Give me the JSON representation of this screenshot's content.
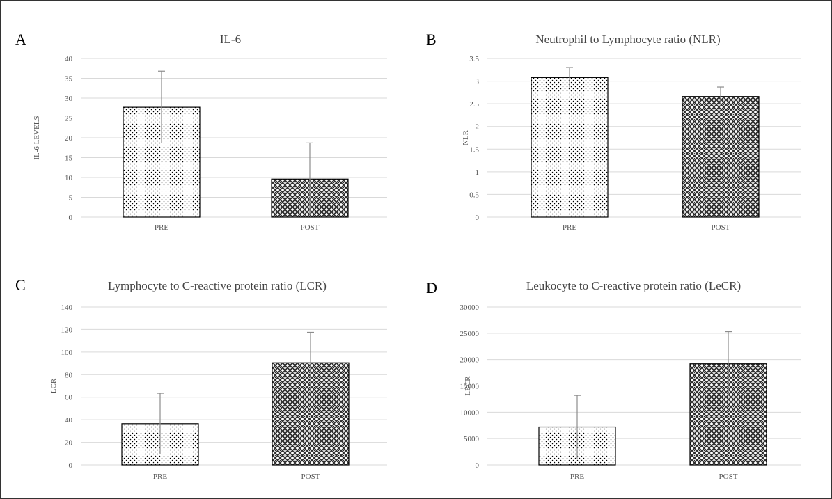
{
  "chart_data": [
    {
      "panel": "A",
      "type": "bar",
      "title": "IL-6",
      "xlabel": "",
      "ylabel": "IL-6 LEVELS",
      "categories": [
        "PRE",
        "POST"
      ],
      "values": [
        27.7,
        9.6
      ],
      "error": [
        9.1,
        9.1
      ],
      "ylim": [
        0,
        40
      ],
      "yticks": [
        0,
        5,
        10,
        15,
        20,
        25,
        30,
        35,
        40
      ],
      "ytick_labels": [
        "0",
        "5",
        "10",
        "15",
        "20",
        "25",
        "30",
        "35",
        "40"
      ],
      "grid": true
    },
    {
      "panel": "B",
      "type": "bar",
      "title": "Neutrophil to Lymphocyte ratio (NLR)",
      "xlabel": "",
      "ylabel": "NLR",
      "categories": [
        "PRE",
        "POST"
      ],
      "values": [
        3.08,
        2.66
      ],
      "error": [
        0.22,
        0.21
      ],
      "ylim": [
        0,
        3.5
      ],
      "yticks": [
        0,
        0.5,
        1,
        1.5,
        2,
        2.5,
        3,
        3.5
      ],
      "ytick_labels": [
        "0",
        "0.5",
        "1",
        "1.5",
        "2",
        "2.5",
        "3",
        "3.5"
      ],
      "grid": true
    },
    {
      "panel": "C",
      "type": "bar",
      "title": "Lymphocyte to C-reactive protein ratio (LCR)",
      "xlabel": "",
      "ylabel": "LCR",
      "categories": [
        "PRE",
        "POST"
      ],
      "values": [
        36.5,
        90.5
      ],
      "error": [
        27,
        27
      ],
      "ylim": [
        0,
        140
      ],
      "yticks": [
        0,
        20,
        40,
        60,
        80,
        100,
        120,
        140
      ],
      "ytick_labels": [
        "0",
        "20",
        "40",
        "60",
        "80",
        "100",
        "120",
        "140"
      ],
      "grid": true
    },
    {
      "panel": "D",
      "type": "bar",
      "title": "Leukocyte to C-reactive protein ratio (LeCR)",
      "xlabel": "",
      "ylabel": "LECR",
      "categories": [
        "PRE",
        "POST"
      ],
      "values": [
        7200,
        19200
      ],
      "error": [
        6000,
        6100
      ],
      "ylim": [
        0,
        30000
      ],
      "yticks": [
        0,
        5000,
        10000,
        15000,
        20000,
        25000,
        30000
      ],
      "ytick_labels": [
        "0",
        "5000",
        "10000",
        "15000",
        "20000",
        "25000",
        "30000"
      ],
      "grid": true
    }
  ],
  "colors": {
    "pre_fill": "#ffffff",
    "post_fill": "#4a4a4a",
    "pattern_ink": "#000000",
    "grid": "#d9d9d9",
    "error_bar": "#8c8c8c",
    "bar_outline": "#000000"
  },
  "patterns": [
    "dotted",
    "diamond-lattice"
  ]
}
